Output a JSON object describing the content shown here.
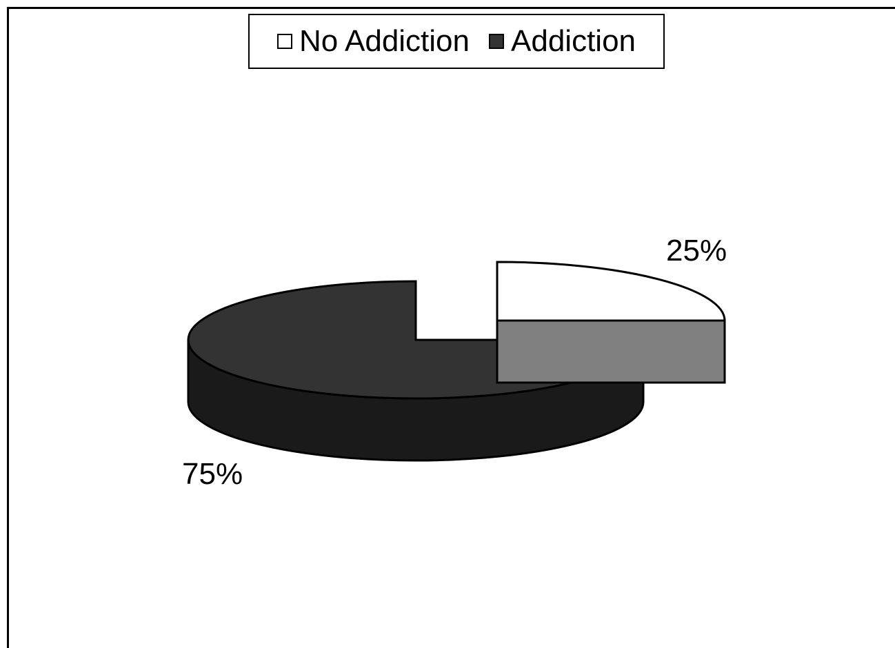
{
  "chart_data": {
    "type": "pie",
    "style": "3d-exploded",
    "categories": [
      "No Addiction",
      "Addiction"
    ],
    "values": [
      25,
      75
    ],
    "labels": [
      "25%",
      "75%"
    ],
    "colors": {
      "top": [
        "#ffffff",
        "#333333"
      ],
      "side": [
        "#808080",
        "#1a1a1a"
      ]
    },
    "legend": {
      "position": "top",
      "entries": [
        "No Addiction",
        "Addiction"
      ]
    }
  }
}
